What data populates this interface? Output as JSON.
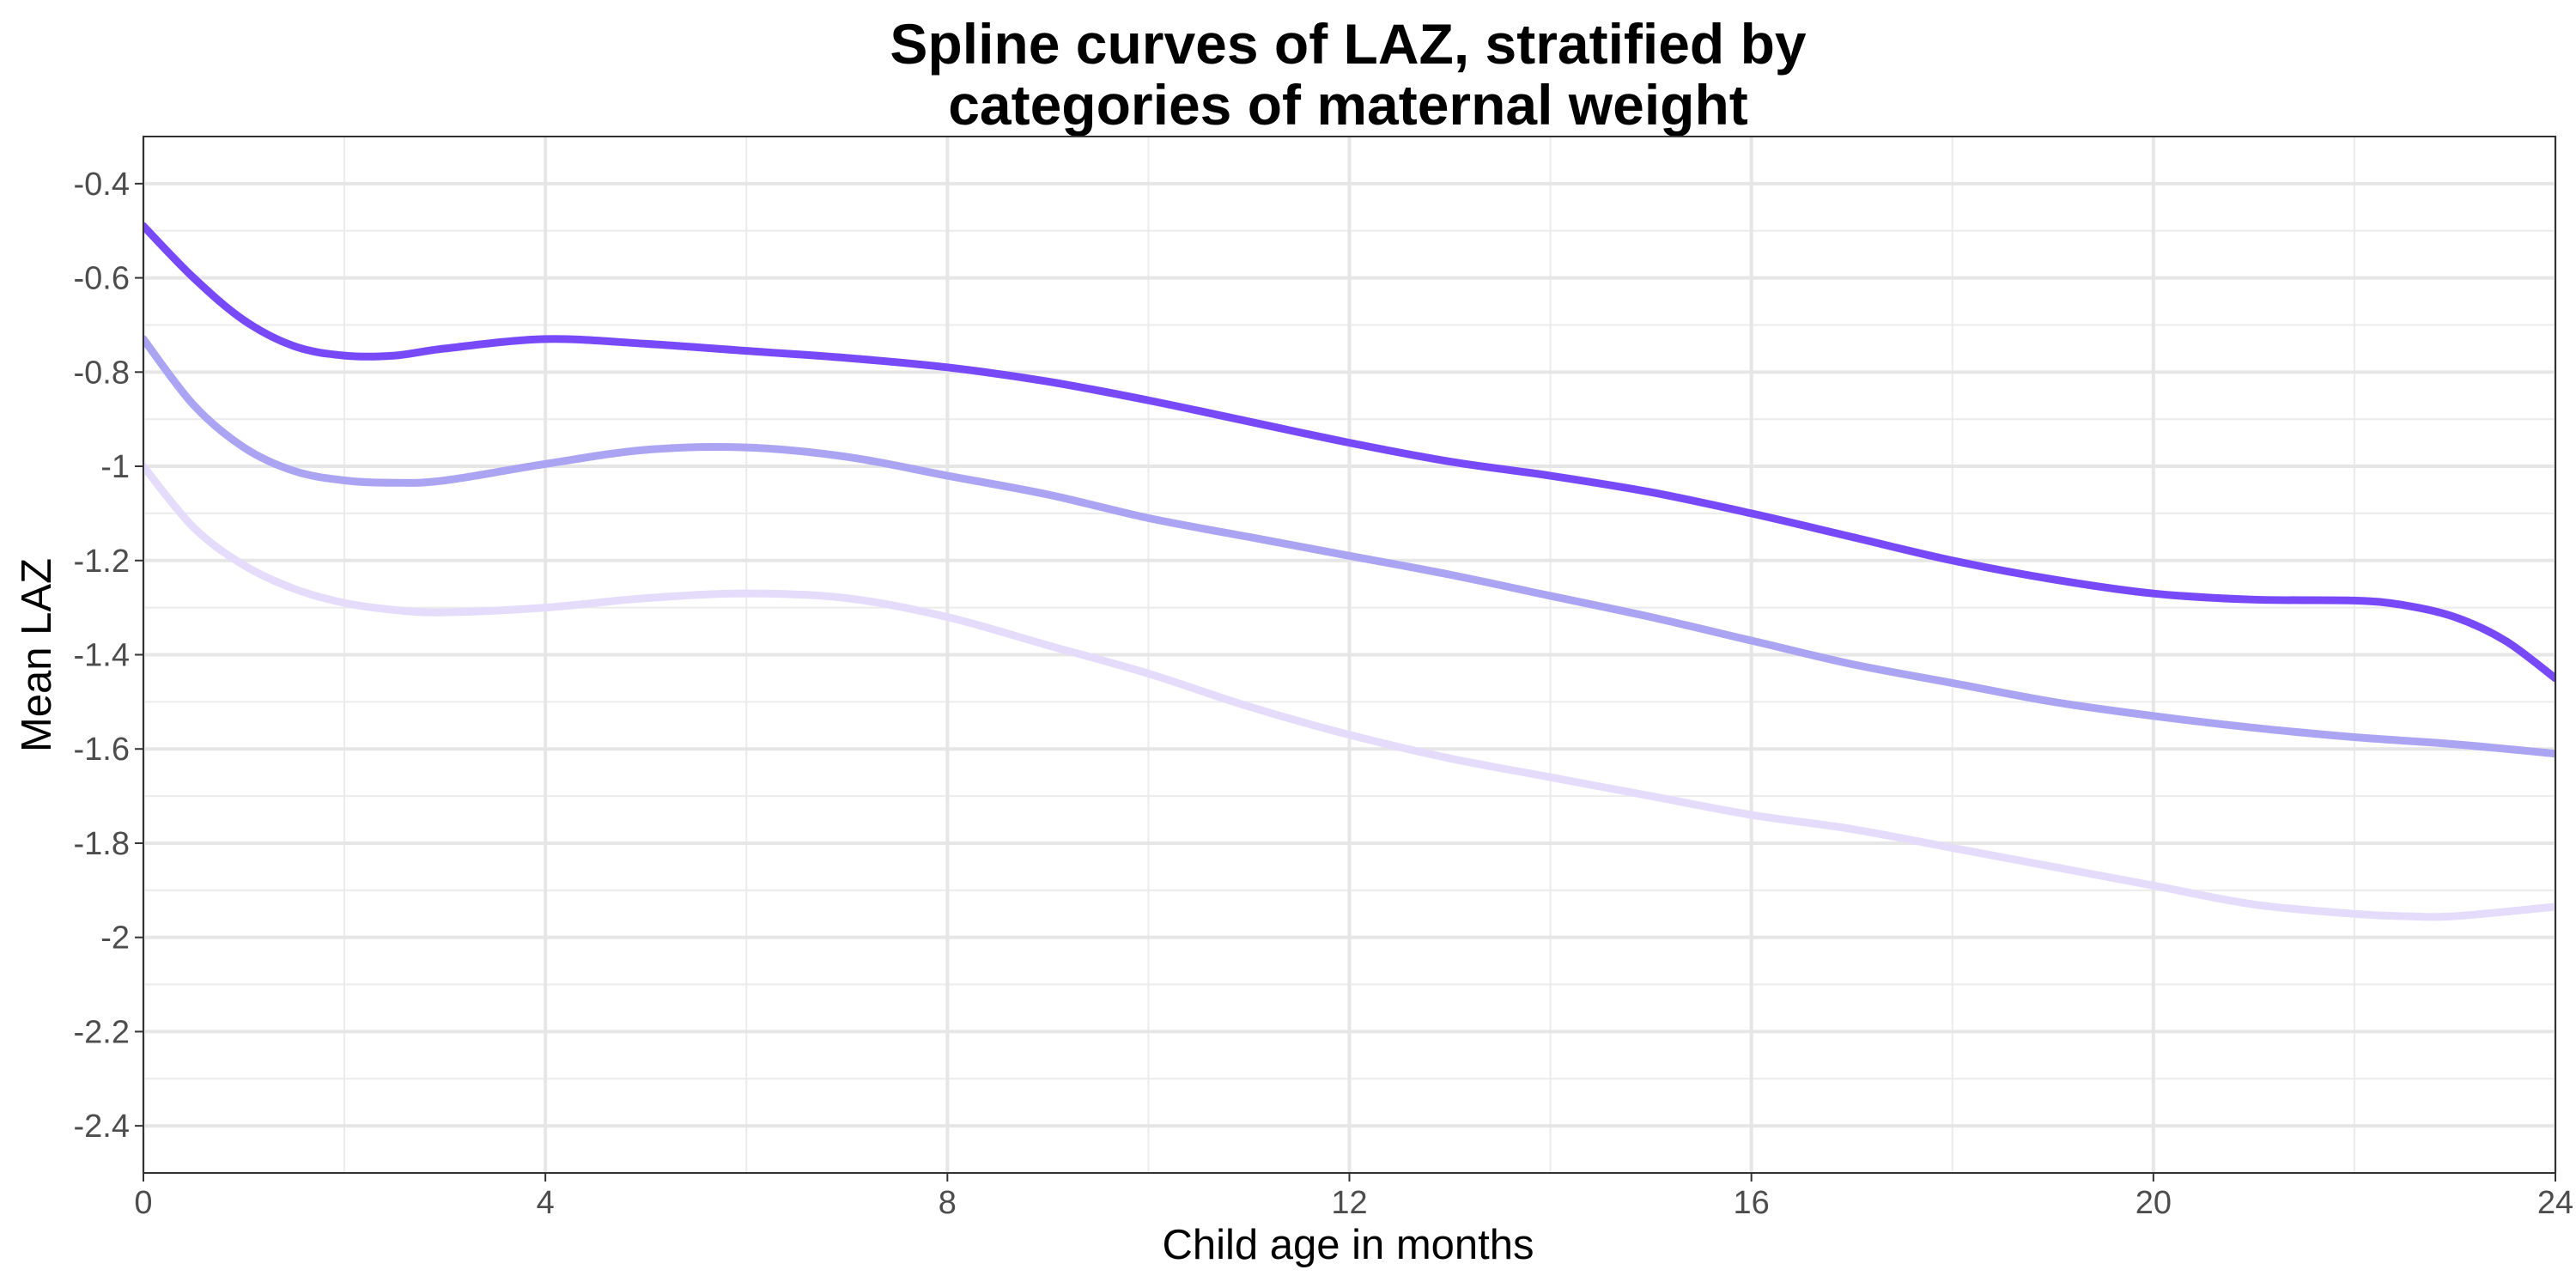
{
  "chart_data": {
    "type": "line",
    "title": "Spline curves of LAZ, stratified by categories of maternal weight",
    "title_lines": [
      "Spline curves of LAZ, stratified by",
      "categories of maternal weight"
    ],
    "xlabel": "Child age in months",
    "ylabel": "Mean LAZ",
    "xlim": [
      0,
      24
    ],
    "ylim": [
      -2.5,
      -0.3
    ],
    "x_ticks": [
      0,
      4,
      8,
      12,
      16,
      20,
      24
    ],
    "x_tick_labels": [
      "0",
      "4",
      "8",
      "12",
      "16",
      "20",
      "24"
    ],
    "x_minor_ticks": [
      2,
      6,
      10,
      14,
      18,
      22
    ],
    "y_ticks": [
      -0.4,
      -0.6,
      -0.8,
      -1,
      -1.2,
      -1.4,
      -1.6,
      -1.8,
      -2,
      -2.2,
      -2.4
    ],
    "y_tick_labels": [
      "-0.4",
      "-0.6",
      "-0.8",
      "-1",
      "-1.2",
      "-1.4",
      "-1.6",
      "-1.8",
      "-2",
      "-2.2",
      "-2.4"
    ],
    "y_minor_ticks": [
      -0.5,
      -0.7,
      -0.9,
      -1.1,
      -1.3,
      -1.5,
      -1.7,
      -1.9,
      -2.1,
      -2.3
    ],
    "grid": true,
    "legend": "none",
    "series": [
      {
        "color": "#7749f8",
        "x": [
          0,
          0.5,
          1,
          1.5,
          2,
          2.5,
          3,
          4,
          5,
          6,
          7,
          8,
          9,
          10,
          11,
          12,
          13,
          14,
          15,
          16,
          17,
          18,
          19,
          20,
          21,
          22,
          22.5,
          23,
          23.5,
          24
        ],
        "y": [
          -0.49,
          -0.6,
          -0.69,
          -0.745,
          -0.765,
          -0.765,
          -0.75,
          -0.73,
          -0.74,
          -0.755,
          -0.77,
          -0.79,
          -0.82,
          -0.86,
          -0.905,
          -0.95,
          -0.99,
          -1.02,
          -1.055,
          -1.1,
          -1.15,
          -1.2,
          -1.24,
          -1.27,
          -1.283,
          -1.285,
          -1.295,
          -1.32,
          -1.37,
          -1.45
        ]
      },
      {
        "color": "#aaa4f2",
        "x": [
          0,
          0.5,
          1,
          1.5,
          2,
          2.5,
          3,
          4,
          5,
          6,
          7,
          8,
          9,
          10,
          11,
          12,
          13,
          14,
          15,
          16,
          17,
          18,
          19,
          20,
          21,
          22,
          23,
          24
        ],
        "y": [
          -0.73,
          -0.87,
          -0.96,
          -1.01,
          -1.03,
          -1.035,
          -1.03,
          -0.995,
          -0.965,
          -0.96,
          -0.98,
          -1.02,
          -1.06,
          -1.11,
          -1.15,
          -1.19,
          -1.23,
          -1.275,
          -1.32,
          -1.37,
          -1.42,
          -1.46,
          -1.5,
          -1.53,
          -1.555,
          -1.575,
          -1.59,
          -1.61
        ]
      },
      {
        "color": "#e4dcfa",
        "x": [
          0,
          0.5,
          1,
          1.5,
          2,
          2.5,
          3,
          4,
          5,
          6,
          7,
          8,
          9,
          10,
          11,
          12,
          13,
          14,
          15,
          16,
          17,
          18,
          19,
          20,
          21,
          22,
          22.5,
          23,
          24
        ],
        "y": [
          -1.0,
          -1.13,
          -1.21,
          -1.26,
          -1.29,
          -1.305,
          -1.31,
          -1.3,
          -1.28,
          -1.27,
          -1.28,
          -1.32,
          -1.38,
          -1.44,
          -1.51,
          -1.57,
          -1.62,
          -1.66,
          -1.7,
          -1.74,
          -1.77,
          -1.81,
          -1.85,
          -1.89,
          -1.93,
          -1.95,
          -1.955,
          -1.955,
          -1.935
        ]
      }
    ]
  }
}
